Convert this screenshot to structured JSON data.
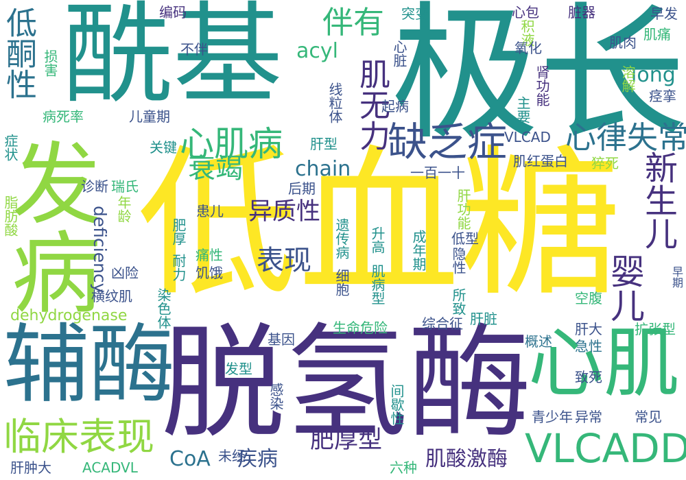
{
  "colors": {
    "background": "#ffffff",
    "yellow": "#fde725",
    "purple": "#46317e",
    "teal": "#21918c",
    "blue": "#2c728e",
    "green": "#35b779",
    "lime": "#90d743",
    "indigo": "#3b528b",
    "dark": "#440154"
  },
  "words": [
    {
      "id": "w01",
      "text": "低血糖",
      "color": "yellow"
    },
    {
      "id": "w02",
      "text": "脱氢酶",
      "color": "purple"
    },
    {
      "id": "w03",
      "text": "酰基",
      "color": "teal"
    },
    {
      "id": "w04",
      "text": "极长",
      "color": "teal"
    },
    {
      "id": "w05",
      "text": "发病",
      "color": "lime"
    },
    {
      "id": "w06",
      "text": "辅酶",
      "color": "blue"
    },
    {
      "id": "w07",
      "text": "心肌",
      "color": "green"
    },
    {
      "id": "w08",
      "text": "VLCADD",
      "color": "green"
    },
    {
      "id": "w09",
      "text": "临床表现",
      "color": "lime"
    },
    {
      "id": "w10",
      "text": "心肌病",
      "color": "green"
    },
    {
      "id": "w11",
      "text": "心律失常",
      "color": "blue"
    },
    {
      "id": "w12",
      "text": "缺乏症",
      "color": "indigo"
    },
    {
      "id": "w13",
      "text": "肌无力",
      "color": "purple"
    },
    {
      "id": "w14",
      "text": "伴有",
      "color": "green"
    },
    {
      "id": "w15",
      "text": "低酮性",
      "color": "blue"
    },
    {
      "id": "w16",
      "text": "衰竭",
      "color": "green"
    },
    {
      "id": "w17",
      "text": "婴儿",
      "color": "purple"
    },
    {
      "id": "w18",
      "text": "新生儿",
      "color": "purple"
    },
    {
      "id": "w19",
      "text": "表现",
      "color": "indigo"
    },
    {
      "id": "w20",
      "text": "异质性",
      "color": "purple"
    },
    {
      "id": "w21",
      "text": "chain",
      "color": "blue"
    },
    {
      "id": "w22",
      "text": "acyl",
      "color": "green"
    },
    {
      "id": "w23",
      "text": "long",
      "color": "teal"
    },
    {
      "id": "w24",
      "text": "deficiency",
      "color": "indigo"
    },
    {
      "id": "w25",
      "text": "dehydrogenase",
      "color": "lime"
    },
    {
      "id": "w26",
      "text": "CoA",
      "color": "blue"
    },
    {
      "id": "w27",
      "text": "疾病",
      "color": "indigo"
    },
    {
      "id": "w28",
      "text": "肥厚型",
      "color": "purple"
    },
    {
      "id": "w29",
      "text": "肌酸激酶",
      "color": "purple"
    },
    {
      "id": "w30",
      "text": "编码",
      "color": "purple"
    },
    {
      "id": "w31",
      "text": "突变",
      "color": "teal"
    },
    {
      "id": "w32",
      "text": "心包",
      "color": "purple"
    },
    {
      "id": "w33",
      "text": "脏器",
      "color": "purple"
    },
    {
      "id": "w34",
      "text": "早发",
      "color": "indigo"
    },
    {
      "id": "w35",
      "text": "积液",
      "color": "lime"
    },
    {
      "id": "w36",
      "text": "肌痛",
      "color": "green"
    },
    {
      "id": "w37",
      "text": "氧化",
      "color": "indigo"
    },
    {
      "id": "w38",
      "text": "肌肉",
      "color": "indigo"
    },
    {
      "id": "w39",
      "text": "不伴",
      "color": "indigo"
    },
    {
      "id": "w40",
      "text": "损害",
      "color": "green"
    },
    {
      "id": "w41",
      "text": "心脏",
      "color": "indigo"
    },
    {
      "id": "w42",
      "text": "溶解",
      "color": "lime"
    },
    {
      "id": "w43",
      "text": "肾功能",
      "color": "purple"
    },
    {
      "id": "w44",
      "text": "主要",
      "color": "teal"
    },
    {
      "id": "w45",
      "text": "痉挛",
      "color": "indigo"
    },
    {
      "id": "w46",
      "text": "线粒体",
      "color": "indigo"
    },
    {
      "id": "w47",
      "text": "起病",
      "color": "indigo"
    },
    {
      "id": "w48",
      "text": "病死率",
      "color": "green"
    },
    {
      "id": "w49",
      "text": "儿童期",
      "color": "indigo"
    },
    {
      "id": "w50",
      "text": "症状",
      "color": "teal"
    },
    {
      "id": "w51",
      "text": "关键",
      "color": "teal"
    },
    {
      "id": "w52",
      "text": "肝型",
      "color": "teal"
    },
    {
      "id": "w53",
      "text": "VLCAD",
      "color": "indigo"
    },
    {
      "id": "w54",
      "text": "肌红蛋白",
      "color": "indigo"
    },
    {
      "id": "w55",
      "text": "猝死",
      "color": "lime"
    },
    {
      "id": "w56",
      "text": "诊断",
      "color": "indigo"
    },
    {
      "id": "w57",
      "text": "瑞氏",
      "color": "green"
    },
    {
      "id": "w58",
      "text": "一百一十",
      "color": "indigo"
    },
    {
      "id": "w59",
      "text": "脂肪酸",
      "color": "lime"
    },
    {
      "id": "w60",
      "text": "年龄",
      "color": "lime"
    },
    {
      "id": "w61",
      "text": "后期",
      "color": "indigo"
    },
    {
      "id": "w62",
      "text": "肝功能",
      "color": "lime"
    },
    {
      "id": "w63",
      "text": "患儿",
      "color": "indigo"
    },
    {
      "id": "w64",
      "text": "耐力",
      "color": "teal"
    },
    {
      "id": "w65",
      "text": "肥厚",
      "color": "teal"
    },
    {
      "id": "w66",
      "text": "遗传病",
      "color": "teal"
    },
    {
      "id": "w67",
      "text": "细胞",
      "color": "indigo"
    },
    {
      "id": "w68",
      "text": "肌病型",
      "color": "teal"
    },
    {
      "id": "w69",
      "text": "升高",
      "color": "teal"
    },
    {
      "id": "w70",
      "text": "成年期",
      "color": "teal"
    },
    {
      "id": "w71",
      "text": "低型",
      "color": "indigo"
    },
    {
      "id": "w72",
      "text": "隐性",
      "color": "indigo"
    },
    {
      "id": "w73",
      "text": "早期",
      "color": "indigo"
    },
    {
      "id": "w74",
      "text": "凶险",
      "color": "indigo"
    },
    {
      "id": "w75",
      "text": "痛性",
      "color": "green"
    },
    {
      "id": "w76",
      "text": "饥饿",
      "color": "indigo"
    },
    {
      "id": "w77",
      "text": "横纹肌",
      "color": "indigo"
    },
    {
      "id": "w78",
      "text": "染色体",
      "color": "teal"
    },
    {
      "id": "w79",
      "text": "所致",
      "color": "teal"
    },
    {
      "id": "w80",
      "text": "空腹",
      "color": "green"
    },
    {
      "id": "w81",
      "text": "肝脏",
      "color": "teal"
    },
    {
      "id": "w82",
      "text": "生命危险",
      "color": "green"
    },
    {
      "id": "w83",
      "text": "综合征",
      "color": "indigo"
    },
    {
      "id": "w84",
      "text": "肝大",
      "color": "indigo"
    },
    {
      "id": "w85",
      "text": "扩张型",
      "color": "green"
    },
    {
      "id": "w86",
      "text": "基因",
      "color": "indigo"
    },
    {
      "id": "w87",
      "text": "概述",
      "color": "blue"
    },
    {
      "id": "w88",
      "text": "急性",
      "color": "blue"
    },
    {
      "id": "w89",
      "text": "发型",
      "color": "teal"
    },
    {
      "id": "w90",
      "text": "致死",
      "color": "indigo"
    },
    {
      "id": "w91",
      "text": "感染",
      "color": "indigo"
    },
    {
      "id": "w92",
      "text": "间歇性",
      "color": "teal"
    },
    {
      "id": "w93",
      "text": "青少年",
      "color": "indigo"
    },
    {
      "id": "w94",
      "text": "异常",
      "color": "indigo"
    },
    {
      "id": "w95",
      "text": "常见",
      "color": "indigo"
    },
    {
      "id": "w96",
      "text": "未经",
      "color": "indigo"
    },
    {
      "id": "w97",
      "text": "六种",
      "color": "green"
    },
    {
      "id": "w98",
      "text": "肝肿大",
      "color": "indigo"
    },
    {
      "id": "w99",
      "text": "ACADVL",
      "color": "green"
    }
  ]
}
